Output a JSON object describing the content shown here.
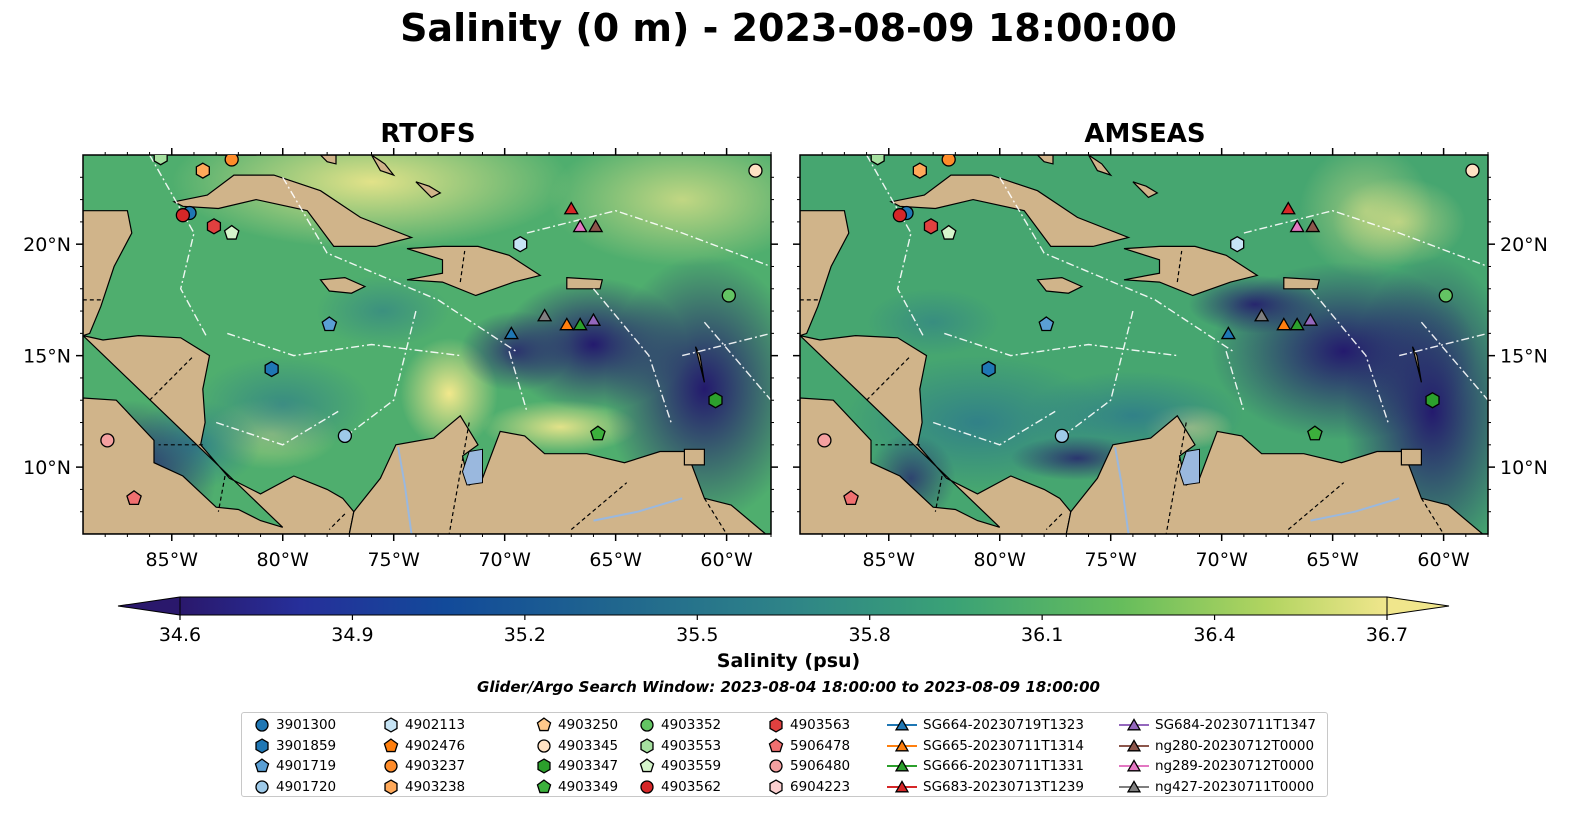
{
  "title": "Salinity (0 m) - 2023-08-09 18:00:00",
  "panels": [
    {
      "name": "rtofs",
      "title": "RTOFS"
    },
    {
      "name": "amseas",
      "title": "AMSEAS"
    }
  ],
  "axes": {
    "lon_ticks": [
      "85°W",
      "80°W",
      "75°W",
      "70°W",
      "65°W",
      "60°W"
    ],
    "lat_ticks": [
      "20°N",
      "15°N",
      "10°N"
    ],
    "lon_range": [
      -89,
      -58
    ],
    "lat_range": [
      7,
      24
    ]
  },
  "colorbar": {
    "label": "Salinity (psu)",
    "ticks": [
      "34.6",
      "34.9",
      "35.2",
      "35.5",
      "35.8",
      "36.1",
      "36.4",
      "36.7"
    ],
    "range": [
      34.6,
      36.7
    ],
    "colormap": "haline",
    "extend": "both"
  },
  "search_window": "Glider/Argo Search Window: 2023-08-04 18:00:00 to 2023-08-09 18:00:00",
  "colors": {
    "land": "#d0b48a",
    "lake": "#9ab8de",
    "ocean_low": "#2a186c",
    "ocean_high": "#f0e68c"
  },
  "legend": [
    {
      "label": "3901300",
      "marker": "circle",
      "color": "#1f77b4"
    },
    {
      "label": "3901859",
      "marker": "hexagon",
      "color": "#1f77b4"
    },
    {
      "label": "4901719",
      "marker": "pentagon",
      "color": "#5a9fd4"
    },
    {
      "label": "4901720",
      "marker": "circle",
      "color": "#9ecae9"
    },
    {
      "label": "4902113",
      "marker": "hexagon",
      "color": "#c6e4f5"
    },
    {
      "label": "4902476",
      "marker": "pentagon",
      "color": "#ff7f0e"
    },
    {
      "label": "4903237",
      "marker": "circle",
      "color": "#ff8c2a"
    },
    {
      "label": "4903238",
      "marker": "hexagon",
      "color": "#ffa95a"
    },
    {
      "label": "4903250",
      "marker": "pentagon",
      "color": "#ffc98a"
    },
    {
      "label": "4903345",
      "marker": "circle",
      "color": "#ffe2c4"
    },
    {
      "label": "4903347",
      "marker": "hexagon",
      "color": "#2ca02c"
    },
    {
      "label": "4903349",
      "marker": "pentagon",
      "color": "#3cb03c"
    },
    {
      "label": "4903352",
      "marker": "circle",
      "color": "#63c463"
    },
    {
      "label": "4903553",
      "marker": "hexagon",
      "color": "#a6e0a0"
    },
    {
      "label": "4903559",
      "marker": "pentagon",
      "color": "#d6f5cc"
    },
    {
      "label": "4903562",
      "marker": "circle",
      "color": "#d62728"
    },
    {
      "label": "4903563",
      "marker": "hexagon",
      "color": "#e0403f"
    },
    {
      "label": "5906478",
      "marker": "pentagon",
      "color": "#f07070"
    },
    {
      "label": "5906480",
      "marker": "circle",
      "color": "#f4a0a0"
    },
    {
      "label": "6904223",
      "marker": "hexagon",
      "color": "#fcd0d0"
    },
    {
      "label": "SG664-20230719T1323",
      "marker": "triangle",
      "color": "#1f77b4"
    },
    {
      "label": "SG665-20230711T1314",
      "marker": "triangle",
      "color": "#ff7f0e"
    },
    {
      "label": "SG666-20230711T1331",
      "marker": "triangle",
      "color": "#2ca02c"
    },
    {
      "label": "SG683-20230713T1239",
      "marker": "triangle",
      "color": "#d62728"
    },
    {
      "label": "SG684-20230711T1347",
      "marker": "triangle",
      "color": "#9467bd"
    },
    {
      "label": "ng280-20230712T0000",
      "marker": "triangle",
      "color": "#8c564b"
    },
    {
      "label": "ng289-20230712T0000",
      "marker": "triangle",
      "color": "#e377c2"
    },
    {
      "label": "ng427-20230711T0000",
      "marker": "triangle",
      "color": "#7f7f7f"
    }
  ],
  "stations": [
    {
      "label": "3901300",
      "lon": -84.2,
      "lat": 21.4
    },
    {
      "label": "4903562",
      "lon": -84.5,
      "lat": 21.3
    },
    {
      "label": "4903563",
      "lon": -83.1,
      "lat": 20.8
    },
    {
      "label": "4903559",
      "lon": -82.3,
      "lat": 20.5
    },
    {
      "label": "4903238",
      "lon": -83.6,
      "lat": 23.3
    },
    {
      "label": "4903237",
      "lon": -82.3,
      "lat": 23.8
    },
    {
      "label": "4903553",
      "lon": -85.5,
      "lat": 23.9
    },
    {
      "label": "4903345",
      "lon": -58.7,
      "lat": 23.3
    },
    {
      "label": "4902113",
      "lon": -69.3,
      "lat": 20.0
    },
    {
      "label": "4903352",
      "lon": -59.9,
      "lat": 17.7
    },
    {
      "label": "4901719",
      "lon": -77.9,
      "lat": 16.4
    },
    {
      "label": "3901859",
      "lon": -80.5,
      "lat": 14.4
    },
    {
      "label": "4901720",
      "lon": -77.2,
      "lat": 11.4
    },
    {
      "label": "4903347",
      "lon": -60.5,
      "lat": 13.0
    },
    {
      "label": "4903349",
      "lon": -65.8,
      "lat": 11.5
    },
    {
      "label": "5906480",
      "lon": -87.9,
      "lat": 11.2
    },
    {
      "label": "5906478",
      "lon": -86.7,
      "lat": 8.6
    },
    {
      "label": "SG683-20230713T1239",
      "lon": -67.0,
      "lat": 21.6
    },
    {
      "label": "ng289-20230712T0000",
      "lon": -66.6,
      "lat": 20.8
    },
    {
      "label": "ng280-20230712T0000",
      "lon": -65.9,
      "lat": 20.8
    },
    {
      "label": "SG684-20230711T1347",
      "lon": -66.0,
      "lat": 16.6
    },
    {
      "label": "ng427-20230711T0000",
      "lon": -68.2,
      "lat": 16.8
    },
    {
      "label": "SG665-20230711T1314",
      "lon": -67.2,
      "lat": 16.4
    },
    {
      "label": "SG666-20230711T1331",
      "lon": -66.6,
      "lat": 16.4
    },
    {
      "label": "SG664-20230719T1323",
      "lon": -69.7,
      "lat": 16.0
    }
  ]
}
